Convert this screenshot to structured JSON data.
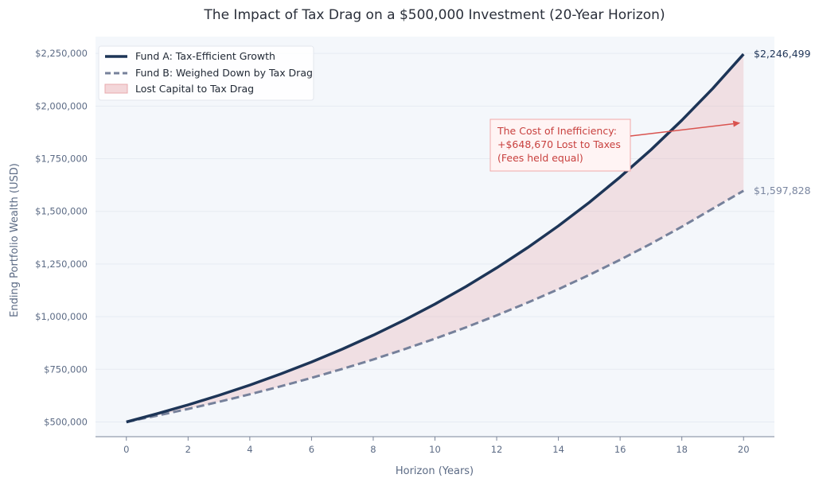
{
  "chart_data": {
    "type": "line",
    "title": "The Impact of Tax Drag on a $500,000 Investment (20-Year Horizon)",
    "xlabel": "Horizon (Years)",
    "ylabel": "Ending Portfolio Wealth (USD)",
    "xlim": [
      -1,
      21
    ],
    "ylim": [
      430000,
      2330000
    ],
    "x_ticks": [
      0,
      2,
      4,
      6,
      8,
      10,
      12,
      14,
      16,
      18,
      20
    ],
    "y_ticks": [
      500000,
      750000,
      1000000,
      1250000,
      1500000,
      1750000,
      2000000,
      2250000
    ],
    "y_tick_labels": [
      "$500,000",
      "$750,000",
      "$1,000,000",
      "$1,250,000",
      "$1,500,000",
      "$1,750,000",
      "$2,000,000",
      "$2,250,000"
    ],
    "x_tick_labels": [
      "0",
      "2",
      "4",
      "6",
      "8",
      "10",
      "12",
      "14",
      "16",
      "18",
      "20"
    ],
    "grid": "horizontal",
    "legend_position": "top-left",
    "series": [
      {
        "name": "Fund A: Tax-Efficient Growth",
        "style": "solid",
        "color": "#1d3557",
        "start_value": 500000,
        "end_value": 2246499,
        "x": [
          0,
          1,
          2,
          3,
          4,
          5,
          6,
          7,
          8,
          9,
          10,
          11,
          12,
          13,
          14,
          15,
          16,
          17,
          18,
          19,
          20
        ],
        "values": [
          500000,
          539000,
          581042,
          626363,
          675219,
          727887,
          784662,
          845865,
          911843,
          982967,
          1059638,
          1142289,
          1231388,
          1327437,
          1430977,
          1542593,
          1662915,
          1792623,
          1932448,
          2083179,
          2246499
        ]
      },
      {
        "name": "Fund B: Weighed Down by Tax Drag",
        "style": "dashed",
        "color": "#76819b",
        "start_value": 500000,
        "end_value": 1597828,
        "x": [
          0,
          1,
          2,
          3,
          4,
          5,
          6,
          7,
          8,
          9,
          10,
          11,
          12,
          13,
          14,
          15,
          16,
          17,
          18,
          19,
          20
        ],
        "values": [
          500000,
          530000,
          561800,
          595508,
          631238,
          669113,
          709260,
          751816,
          796924,
          844740,
          895424,
          949149,
          1006098,
          1066464,
          1130452,
          1198279,
          1270176,
          1346386,
          1427169,
          1512799,
          1597828
        ]
      }
    ],
    "fill_between": {
      "name": "Lost Capital to Tax Drag",
      "color": "#e8a9ad"
    },
    "end_labels": {
      "fund_a": "$2,246,499",
      "fund_b": "$1,597,828"
    },
    "annotation": {
      "lines": [
        "The Cost of Inefficiency:",
        "+$648,670 Lost to Taxes",
        "(Fees held equal)"
      ],
      "color": "#d9534f",
      "arrow_target": {
        "x": 20,
        "y": 1920000
      }
    }
  }
}
